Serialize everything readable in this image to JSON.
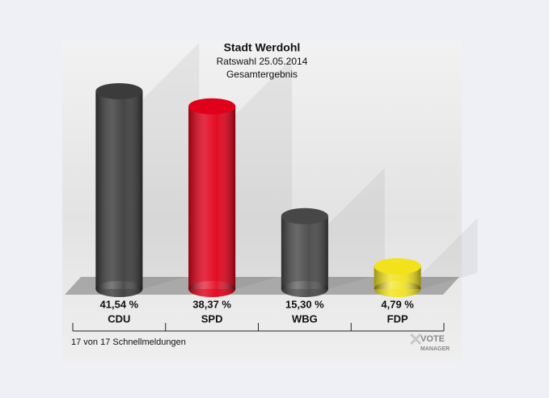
{
  "chart_data": {
    "type": "bar3d",
    "title": "Stadt Werdohl",
    "subtitle": "Ratswahl 25.05.2014",
    "caption": "Gesamtergebnis",
    "categories": [
      "CDU",
      "SPD",
      "WBG",
      "FDP"
    ],
    "values": [
      41.54,
      38.37,
      15.3,
      4.79
    ],
    "value_labels": [
      "41,54 %",
      "38,37 %",
      "15,30 %",
      "4,79 %"
    ],
    "colors": [
      "#3b3b3b",
      "#e0001a",
      "#474747",
      "#f2e21c"
    ],
    "footer": "17 von 17 Schnellmeldungen",
    "logo": [
      "VOTE",
      "MANAGER"
    ]
  }
}
